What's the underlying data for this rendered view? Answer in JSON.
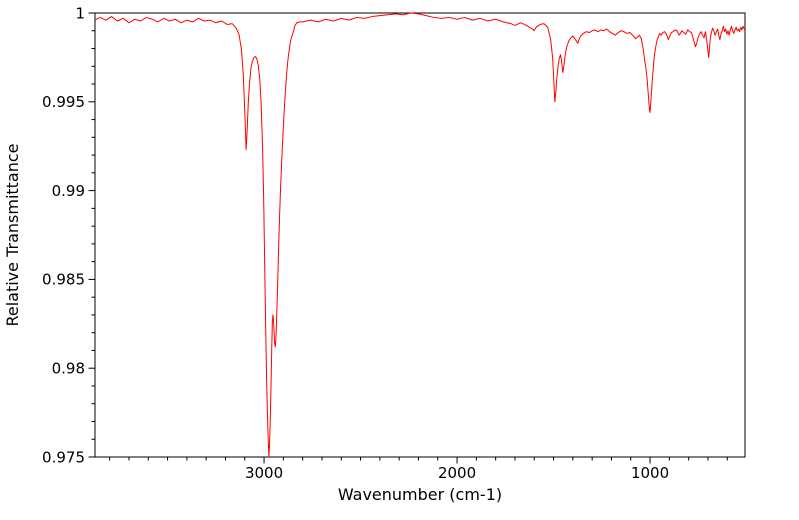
{
  "figure": {
    "background": "#ffffff",
    "axis_color": "#000000"
  },
  "chart_data": {
    "type": "line",
    "title": "",
    "xlabel": "Wavenumber (cm-1)",
    "ylabel": "Relative Transmittance",
    "grid": false,
    "legend": "none",
    "x_axis": {
      "lim": [
        3876,
        508
      ],
      "inverted": true,
      "major_ticks": [
        3000,
        2000,
        1000
      ],
      "major_labels": [
        "3000",
        "2000",
        "1000"
      ],
      "minor_step": 100
    },
    "y_axis": {
      "lim": [
        0.975,
        1.0
      ],
      "major_ticks": [
        1.0,
        0.995,
        0.99,
        0.985,
        0.98,
        0.975
      ],
      "major_labels": [
        "1",
        "0.995",
        "0.99",
        "0.985",
        "0.98",
        "0.975"
      ],
      "minor_step": 0.001
    },
    "series": [
      {
        "name": "ir-spectrum",
        "color": "#ff0000",
        "line_width": 1,
        "points": [
          [
            3876,
            0.9996
          ],
          [
            3850,
            0.99975
          ],
          [
            3820,
            0.9996
          ],
          [
            3790,
            0.9998
          ],
          [
            3760,
            0.99955
          ],
          [
            3730,
            0.9997
          ],
          [
            3700,
            0.99945
          ],
          [
            3670,
            0.99965
          ],
          [
            3640,
            0.99955
          ],
          [
            3610,
            0.99975
          ],
          [
            3580,
            0.99965
          ],
          [
            3550,
            0.9995
          ],
          [
            3520,
            0.9997
          ],
          [
            3490,
            0.99955
          ],
          [
            3460,
            0.99965
          ],
          [
            3430,
            0.99945
          ],
          [
            3400,
            0.9996
          ],
          [
            3370,
            0.9995
          ],
          [
            3340,
            0.9997
          ],
          [
            3310,
            0.99955
          ],
          [
            3280,
            0.9996
          ],
          [
            3250,
            0.99945
          ],
          [
            3220,
            0.99955
          ],
          [
            3190,
            0.99935
          ],
          [
            3165,
            0.9994
          ],
          [
            3145,
            0.99915
          ],
          [
            3130,
            0.9988
          ],
          [
            3118,
            0.998
          ],
          [
            3108,
            0.9966
          ],
          [
            3100,
            0.9945
          ],
          [
            3093,
            0.9923
          ],
          [
            3088,
            0.9933
          ],
          [
            3082,
            0.9949
          ],
          [
            3075,
            0.9961
          ],
          [
            3068,
            0.9969
          ],
          [
            3060,
            0.9973
          ],
          [
            3052,
            0.9975
          ],
          [
            3045,
            0.99755
          ],
          [
            3038,
            0.99745
          ],
          [
            3030,
            0.99705
          ],
          [
            3022,
            0.99625
          ],
          [
            3015,
            0.99485
          ],
          [
            3008,
            0.99255
          ],
          [
            3002,
            0.98955
          ],
          [
            2997,
            0.986
          ],
          [
            2992,
            0.9825
          ],
          [
            2987,
            0.9795
          ],
          [
            2982,
            0.9772
          ],
          [
            2978,
            0.9758
          ],
          [
            2975,
            0.975
          ],
          [
            2972,
            0.9756
          ],
          [
            2968,
            0.977
          ],
          [
            2964,
            0.979
          ],
          [
            2960,
            0.9812
          ],
          [
            2957,
            0.9826
          ],
          [
            2954,
            0.983
          ],
          [
            2951,
            0.9827
          ],
          [
            2948,
            0.982
          ],
          [
            2945,
            0.9814
          ],
          [
            2942,
            0.9812
          ],
          [
            2939,
            0.9816
          ],
          [
            2936,
            0.9824
          ],
          [
            2932,
            0.9838
          ],
          [
            2928,
            0.9854
          ],
          [
            2924,
            0.987
          ],
          [
            2920,
            0.9884
          ],
          [
            2915,
            0.99
          ],
          [
            2910,
            0.9913
          ],
          [
            2905,
            0.9925
          ],
          [
            2900,
            0.9936
          ],
          [
            2894,
            0.9948
          ],
          [
            2888,
            0.9958
          ],
          [
            2882,
            0.9967
          ],
          [
            2876,
            0.9974
          ],
          [
            2870,
            0.9979
          ],
          [
            2863,
            0.9984
          ],
          [
            2856,
            0.9987
          ],
          [
            2848,
            0.99895
          ],
          [
            2840,
            0.9993
          ],
          [
            2830,
            0.99945
          ],
          [
            2815,
            0.9995
          ],
          [
            2800,
            0.9995
          ],
          [
            2760,
            0.9996
          ],
          [
            2720,
            0.9995
          ],
          [
            2680,
            0.99965
          ],
          [
            2640,
            0.99955
          ],
          [
            2600,
            0.9997
          ],
          [
            2560,
            0.9996
          ],
          [
            2520,
            0.99975
          ],
          [
            2480,
            0.9997
          ],
          [
            2440,
            0.9998
          ],
          [
            2400,
            0.99985
          ],
          [
            2360,
            0.9999
          ],
          [
            2320,
            0.99995
          ],
          [
            2280,
            0.9999
          ],
          [
            2240,
            1.0
          ],
          [
            2200,
            0.99995
          ],
          [
            2160,
            0.99985
          ],
          [
            2120,
            0.99975
          ],
          [
            2080,
            0.9997
          ],
          [
            2040,
            0.99975
          ],
          [
            2000,
            0.99965
          ],
          [
            1960,
            0.99975
          ],
          [
            1920,
            0.9996
          ],
          [
            1880,
            0.9997
          ],
          [
            1840,
            0.99955
          ],
          [
            1800,
            0.99965
          ],
          [
            1760,
            0.9995
          ],
          [
            1720,
            0.9994
          ],
          [
            1700,
            0.9993
          ],
          [
            1670,
            0.99945
          ],
          [
            1640,
            0.9993
          ],
          [
            1610,
            0.9991
          ],
          [
            1601,
            0.999
          ],
          [
            1590,
            0.9992
          ],
          [
            1570,
            0.99935
          ],
          [
            1550,
            0.9994
          ],
          [
            1530,
            0.9992
          ],
          [
            1515,
            0.9985
          ],
          [
            1505,
            0.9975
          ],
          [
            1500,
            0.9965
          ],
          [
            1496,
            0.9956
          ],
          [
            1493,
            0.995
          ],
          [
            1489,
            0.99545
          ],
          [
            1483,
            0.99635
          ],
          [
            1476,
            0.99705
          ],
          [
            1470,
            0.99745
          ],
          [
            1464,
            0.99765
          ],
          [
            1459,
            0.99735
          ],
          [
            1455,
            0.99695
          ],
          [
            1452,
            0.99665
          ],
          [
            1449,
            0.99685
          ],
          [
            1444,
            0.99725
          ],
          [
            1438,
            0.99775
          ],
          [
            1430,
            0.99815
          ],
          [
            1420,
            0.99845
          ],
          [
            1410,
            0.9986
          ],
          [
            1400,
            0.9987
          ],
          [
            1390,
            0.99855
          ],
          [
            1380,
            0.9984
          ],
          [
            1374,
            0.9983
          ],
          [
            1368,
            0.9985
          ],
          [
            1360,
            0.9987
          ],
          [
            1345,
            0.99885
          ],
          [
            1330,
            0.99895
          ],
          [
            1315,
            0.9989
          ],
          [
            1300,
            0.999
          ],
          [
            1285,
            0.99905
          ],
          [
            1270,
            0.99895
          ],
          [
            1255,
            0.99905
          ],
          [
            1240,
            0.999
          ],
          [
            1225,
            0.9991
          ],
          [
            1210,
            0.99895
          ],
          [
            1195,
            0.99885
          ],
          [
            1180,
            0.99875
          ],
          [
            1165,
            0.9989
          ],
          [
            1150,
            0.999
          ],
          [
            1135,
            0.99895
          ],
          [
            1120,
            0.99885
          ],
          [
            1105,
            0.9989
          ],
          [
            1090,
            0.99875
          ],
          [
            1075,
            0.99855
          ],
          [
            1065,
            0.99865
          ],
          [
            1055,
            0.99875
          ],
          [
            1045,
            0.99855
          ],
          [
            1035,
            0.99795
          ],
          [
            1028,
            0.99735
          ],
          [
            1022,
            0.99695
          ],
          [
            1015,
            0.99625
          ],
          [
            1008,
            0.99525
          ],
          [
            1003,
            0.99455
          ],
          [
            1000,
            0.9944
          ],
          [
            997,
            0.99485
          ],
          [
            992,
            0.99565
          ],
          [
            986,
            0.99655
          ],
          [
            980,
            0.99735
          ],
          [
            973,
            0.99795
          ],
          [
            966,
            0.99835
          ],
          [
            958,
            0.99865
          ],
          [
            950,
            0.99885
          ],
          [
            942,
            0.99875
          ],
          [
            934,
            0.9989
          ],
          [
            925,
            0.99895
          ],
          [
            915,
            0.9988
          ],
          [
            905,
            0.9985
          ],
          [
            898,
            0.9987
          ],
          [
            890,
            0.9989
          ],
          [
            880,
            0.99895
          ],
          [
            870,
            0.99905
          ],
          [
            860,
            0.999
          ],
          [
            850,
            0.99875
          ],
          [
            843,
            0.99885
          ],
          [
            835,
            0.999
          ],
          [
            825,
            0.9989
          ],
          [
            815,
            0.9988
          ],
          [
            805,
            0.99905
          ],
          [
            795,
            0.99895
          ],
          [
            785,
            0.9989
          ],
          [
            775,
            0.9985
          ],
          [
            765,
            0.9981
          ],
          [
            758,
            0.9983
          ],
          [
            750,
            0.99865
          ],
          [
            742,
            0.99885
          ],
          [
            735,
            0.99895
          ],
          [
            728,
            0.99875
          ],
          [
            720,
            0.9986
          ],
          [
            713,
            0.99895
          ],
          [
            706,
            0.99845
          ],
          [
            700,
            0.99785
          ],
          [
            696,
            0.9975
          ],
          [
            692,
            0.99805
          ],
          [
            687,
            0.99865
          ],
          [
            682,
            0.9989
          ],
          [
            676,
            0.99915
          ],
          [
            670,
            0.999
          ],
          [
            663,
            0.99875
          ],
          [
            656,
            0.99895
          ],
          [
            650,
            0.9991
          ],
          [
            644,
            0.99875
          ],
          [
            638,
            0.9985
          ],
          [
            632,
            0.99885
          ],
          [
            626,
            0.999
          ],
          [
            620,
            0.99925
          ],
          [
            614,
            0.99895
          ],
          [
            608,
            0.9991
          ],
          [
            602,
            0.9988
          ],
          [
            596,
            0.999
          ],
          [
            590,
            0.99875
          ],
          [
            584,
            0.99905
          ],
          [
            578,
            0.99925
          ],
          [
            572,
            0.999
          ],
          [
            566,
            0.99885
          ],
          [
            560,
            0.99905
          ],
          [
            554,
            0.9992
          ],
          [
            548,
            0.999
          ],
          [
            542,
            0.9991
          ],
          [
            536,
            0.99895
          ],
          [
            530,
            0.9992
          ],
          [
            524,
            0.99905
          ],
          [
            518,
            0.99925
          ],
          [
            512,
            0.9991
          ],
          [
            508,
            0.99915
          ]
        ]
      }
    ]
  }
}
